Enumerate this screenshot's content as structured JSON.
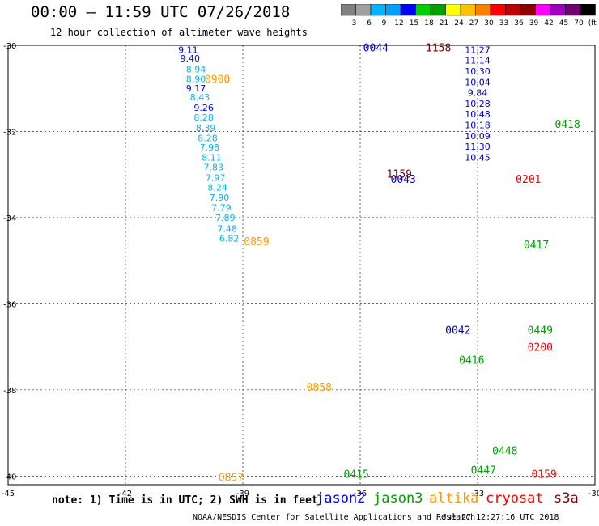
{
  "header": {
    "title": "00:00 – 11:59 UTC 07/26/2018",
    "subtitle": "12 hour collection of altimeter wave heights"
  },
  "colorbar": {
    "colors": [
      "#808080",
      "#a0a0a0",
      "#00b4ff",
      "#00a0ff",
      "#0000ff",
      "#00d000",
      "#00a000",
      "#ffff00",
      "#ffc000",
      "#ff8000",
      "#ff0000",
      "#c00000",
      "#900000",
      "#ff00ff",
      "#a000c0",
      "#700070",
      "#000000"
    ],
    "labels": [
      "3",
      "6",
      "9",
      "12",
      "15",
      "18",
      "21",
      "24",
      "27",
      "30",
      "33",
      "36",
      "39",
      "42",
      "45",
      "70",
      "(ft)"
    ]
  },
  "axes": {
    "lon_ticks": [
      {
        "value": -45,
        "label": "-45"
      },
      {
        "value": -42,
        "label": "-42"
      },
      {
        "value": -39,
        "label": "-39"
      },
      {
        "value": -36,
        "label": "-36"
      },
      {
        "value": -33,
        "label": "-33"
      },
      {
        "value": -30,
        "label": "-30"
      }
    ],
    "lat_ticks": [
      {
        "value": -30,
        "label": "-30"
      },
      {
        "value": -32,
        "label": "-32"
      },
      {
        "value": -34,
        "label": "-34"
      },
      {
        "value": -36,
        "label": "-36"
      },
      {
        "value": -38,
        "label": "-38"
      },
      {
        "value": -40,
        "label": "-40"
      }
    ]
  },
  "chart_data": {
    "type": "scatter",
    "title": "00:00 – 11:59 UTC 07/26/2018",
    "subtitle": "12 hour collection of altimeter wave heights",
    "xlim": [
      -45,
      -30
    ],
    "ylim": [
      -40.2,
      -30
    ],
    "units": "ft",
    "grid": true,
    "series": [
      {
        "name": "altika",
        "color": "#ff9900",
        "time_labels": [
          {
            "lon": -39.65,
            "lat": -30.78,
            "text": "0900"
          },
          {
            "lon": -38.65,
            "lat": -34.55,
            "text": "0859"
          },
          {
            "lon": -37.05,
            "lat": -37.93,
            "text": "0858"
          },
          {
            "lon": -39.3,
            "lat": -40.02,
            "text": "0857"
          }
        ],
        "points": [
          {
            "lon": -40.4,
            "lat": -30.1,
            "swh": "9.11"
          },
          {
            "lon": -40.35,
            "lat": -30.3,
            "swh": "9.40"
          },
          {
            "lon": -40.2,
            "lat": -30.55,
            "swh": "8.94"
          },
          {
            "lon": -40.2,
            "lat": -30.78,
            "swh": "8.90"
          },
          {
            "lon": -40.2,
            "lat": -31.0,
            "swh": "9.17"
          },
          {
            "lon": -40.1,
            "lat": -31.2,
            "swh": "8.43"
          },
          {
            "lon": -40.0,
            "lat": -31.45,
            "swh": "9.26"
          },
          {
            "lon": -40.0,
            "lat": -31.67,
            "swh": "8.28"
          },
          {
            "lon": -39.95,
            "lat": -31.92,
            "swh": "8.39"
          },
          {
            "lon": -39.9,
            "lat": -32.15,
            "swh": "8.28"
          },
          {
            "lon": -39.85,
            "lat": -32.37,
            "swh": "7.98"
          },
          {
            "lon": -39.8,
            "lat": -32.6,
            "swh": "8.11"
          },
          {
            "lon": -39.75,
            "lat": -32.83,
            "swh": "7.83"
          },
          {
            "lon": -39.7,
            "lat": -33.07,
            "swh": "7.97"
          },
          {
            "lon": -39.65,
            "lat": -33.3,
            "swh": "8.24"
          },
          {
            "lon": -39.6,
            "lat": -33.53,
            "swh": "7.90"
          },
          {
            "lon": -39.55,
            "lat": -33.77,
            "swh": "7.79"
          },
          {
            "lon": -39.45,
            "lat": -34.0,
            "swh": "7.89"
          },
          {
            "lon": -39.4,
            "lat": -34.25,
            "swh": "7.48"
          },
          {
            "lon": -39.35,
            "lat": -34.48,
            "swh": "6.82"
          }
        ]
      },
      {
        "name": "jason3",
        "color": "#00a000",
        "time_labels": [
          {
            "lon": -30.7,
            "lat": -31.82,
            "text": "0418"
          },
          {
            "lon": -31.5,
            "lat": -34.62,
            "text": "0417"
          },
          {
            "lon": -33.15,
            "lat": -37.3,
            "text": "0416"
          },
          {
            "lon": -31.4,
            "lat": -36.6,
            "text": "0449"
          },
          {
            "lon": -32.3,
            "lat": -39.4,
            "text": "0448"
          },
          {
            "lon": -32.85,
            "lat": -39.85,
            "text": "0447"
          },
          {
            "lon": -36.1,
            "lat": -39.95,
            "text": "0415"
          }
        ],
        "points": []
      },
      {
        "name": "jason2",
        "color": "#0000cc",
        "time_labels": [
          {
            "lon": -35.6,
            "lat": -30.05,
            "text": "0044"
          },
          {
            "lon": -34.9,
            "lat": -33.1,
            "text": "0043"
          },
          {
            "lon": -33.5,
            "lat": -36.6,
            "text": "0042"
          }
        ],
        "points": [
          {
            "lon": -33.0,
            "lat": -30.1,
            "swh": "11.27"
          },
          {
            "lon": -33.0,
            "lat": -30.35,
            "swh": "11.14"
          },
          {
            "lon": -33.0,
            "lat": -30.6,
            "swh": "10.30"
          },
          {
            "lon": -33.0,
            "lat": -30.85,
            "swh": "10.04"
          },
          {
            "lon": -33.0,
            "lat": -31.1,
            "swh": "9.84"
          },
          {
            "lon": -33.0,
            "lat": -31.35,
            "swh": "10.28"
          },
          {
            "lon": -33.0,
            "lat": -31.6,
            "swh": "10.48"
          },
          {
            "lon": -33.0,
            "lat": -31.85,
            "swh": "10.18"
          },
          {
            "lon": -33.0,
            "lat": -32.1,
            "swh": "10.09"
          },
          {
            "lon": -33.0,
            "lat": -32.35,
            "swh": "11.30"
          },
          {
            "lon": -33.0,
            "lat": -32.6,
            "swh": "10.45"
          }
        ]
      },
      {
        "name": "cryosat",
        "color": "#ff0000",
        "time_labels": [
          {
            "lon": -31.7,
            "lat": -33.1,
            "text": "0201"
          },
          {
            "lon": -31.4,
            "lat": -37.0,
            "text": "0200"
          },
          {
            "lon": -31.3,
            "lat": -39.95,
            "text": "0159"
          }
        ],
        "points": []
      },
      {
        "name": "s3a",
        "color": "#800000",
        "time_labels": [
          {
            "lon": -34.0,
            "lat": -30.05,
            "text": "1158"
          },
          {
            "lon": -35.0,
            "lat": -32.98,
            "text": "1159"
          }
        ],
        "points": []
      }
    ]
  },
  "legend": {
    "note": "note: 1) Time is in UTC; 2) SWH is in feet",
    "items": [
      {
        "label": "jason2",
        "color": "#0000ff"
      },
      {
        "label": "jason3",
        "color": "#00a000"
      },
      {
        "label": "altika",
        "color": "#ff9900"
      },
      {
        "label": "cryosat",
        "color": "#ff0000"
      },
      {
        "label": "s3a",
        "color": "#800000"
      }
    ]
  },
  "footer": {
    "source": "NOAA/NESDIS Center for Satellite Applications and Research",
    "timestamp": "Jul 27 12:27:16 UTC 2018"
  }
}
